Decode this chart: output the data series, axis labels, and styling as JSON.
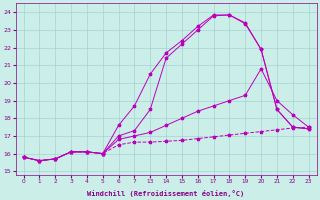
{
  "xlabel": "Windchill (Refroidissement éolien,°C)",
  "background_color": "#cceee8",
  "grid_color": "#99cccc",
  "line_color": "#bb00bb",
  "yticks": [
    15,
    16,
    17,
    18,
    19,
    20,
    21,
    22,
    23,
    24
  ],
  "xtick_labels": [
    "0",
    "1",
    "2",
    "3",
    "4",
    "5",
    "6",
    "7",
    "13",
    "14",
    "15",
    "16",
    "17",
    "18",
    "19",
    "20",
    "21",
    "22",
    "23"
  ],
  "ylim": [
    14.8,
    24.5
  ],
  "line1_y": [
    15.8,
    15.6,
    15.7,
    16.1,
    16.1,
    16.0,
    17.0,
    17.3,
    18.5,
    21.4,
    22.2,
    23.0,
    23.8,
    23.85,
    23.4,
    21.9,
    18.5,
    17.5,
    17.4
  ],
  "line2_y": [
    15.8,
    15.6,
    15.7,
    16.1,
    16.1,
    16.0,
    17.6,
    18.7,
    20.5,
    21.7,
    22.4,
    23.2,
    23.85,
    23.85,
    23.35,
    21.9,
    18.5,
    17.5,
    17.4
  ],
  "line3_y": [
    15.8,
    15.6,
    15.7,
    16.1,
    16.1,
    16.0,
    16.8,
    17.0,
    17.2,
    17.6,
    18.0,
    18.4,
    18.7,
    19.0,
    19.3,
    20.8,
    19.0,
    18.2,
    17.5
  ],
  "line4_y": [
    15.8,
    15.6,
    15.7,
    16.1,
    16.1,
    16.0,
    16.5,
    16.65,
    16.65,
    16.7,
    16.75,
    16.85,
    16.95,
    17.05,
    17.15,
    17.25,
    17.35,
    17.45,
    17.5
  ]
}
